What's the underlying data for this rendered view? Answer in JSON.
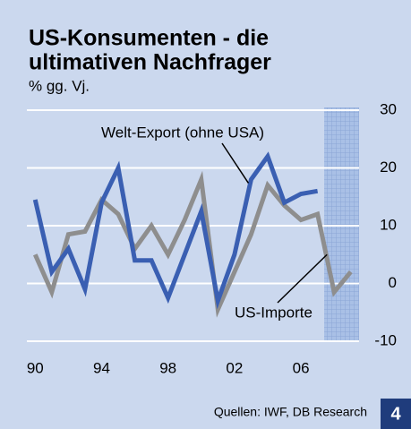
{
  "chart_data": {
    "type": "line",
    "title": "US-Konsumenten - die ultimativen Nachfrager",
    "title_lines": [
      "US-Konsumenten - die",
      "ultimativen Nachfrager"
    ],
    "subtitle": "% gg. Vj.",
    "source": "Quellen: IWF, DB Research",
    "badge": "4",
    "x": [
      1990,
      1991,
      1992,
      1993,
      1994,
      1995,
      1996,
      1997,
      1998,
      1999,
      2000,
      2001,
      2002,
      2003,
      2004,
      2005,
      2006,
      2007,
      2008,
      2009
    ],
    "series": [
      {
        "name": "Welt-Export (ohne USA)",
        "color": "#3a5fb2",
        "values": [
          14.5,
          2,
          6,
          -1,
          14,
          20,
          4,
          4,
          -2.5,
          5,
          12.5,
          -3,
          5,
          18,
          22,
          14,
          15.5,
          16,
          null,
          null
        ]
      },
      {
        "name": "US-Importe",
        "color": "#8e8e8e",
        "values": [
          5,
          -1.5,
          8.5,
          9,
          14.5,
          12,
          6,
          10,
          5,
          11,
          18,
          -4.5,
          2,
          8.5,
          17,
          13.5,
          11,
          12,
          -1.5,
          2
        ]
      }
    ],
    "xlim": [
      1989.5,
      2009.5
    ],
    "xticks": [
      {
        "value": 1990,
        "label": "90"
      },
      {
        "value": 1994,
        "label": "94"
      },
      {
        "value": 1998,
        "label": "98"
      },
      {
        "value": 2002,
        "label": "02"
      },
      {
        "value": 2006,
        "label": "06"
      }
    ],
    "ylim": [
      -10,
      30
    ],
    "yticks": [
      -10,
      0,
      10,
      20,
      30
    ],
    "shaded_region": [
      2007.4,
      2009.5
    ],
    "grid": true
  }
}
